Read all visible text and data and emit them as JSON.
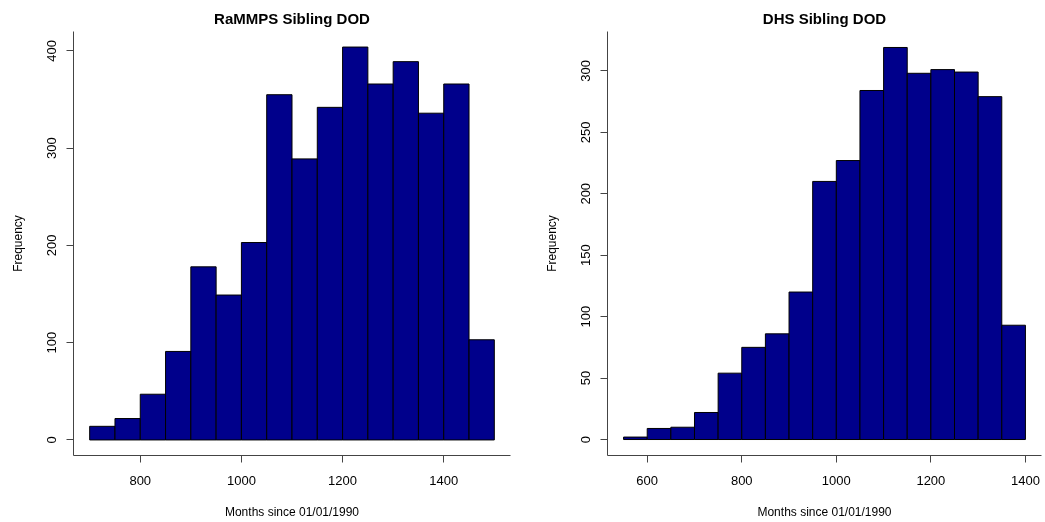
{
  "chart_data": [
    {
      "type": "histogram",
      "title": "RaMMPS Sibling DOD",
      "xlabel": "Months since 01/01/1990",
      "ylabel": "Frequency",
      "bins": [
        700,
        750,
        800,
        850,
        900,
        950,
        1000,
        1050,
        1100,
        1150,
        1200,
        1250,
        1300,
        1350,
        1400,
        1450,
        1500
      ],
      "values": [
        14,
        22,
        47,
        91,
        178,
        149,
        203,
        355,
        289,
        342,
        404,
        366,
        389,
        336,
        366,
        103
      ],
      "color": "#00008b",
      "xlim": [
        668,
        1532
      ],
      "ylim": [
        -16,
        420
      ],
      "xticks": [
        800,
        1000,
        1200,
        1400
      ],
      "yticks": [
        0,
        100,
        200,
        300,
        400
      ]
    },
    {
      "type": "histogram",
      "title": "DHS Sibling DOD",
      "xlabel": "Months since 01/01/1990",
      "ylabel": "Frequency",
      "bins": [
        550,
        600,
        650,
        700,
        750,
        800,
        850,
        900,
        950,
        1000,
        1050,
        1100,
        1150,
        1200,
        1250,
        1300,
        1350,
        1400
      ],
      "values": [
        2,
        9,
        10,
        22,
        54,
        75,
        86,
        120,
        210,
        227,
        284,
        319,
        298,
        301,
        299,
        279,
        93
      ],
      "color": "#00008b",
      "xlim": [
        516,
        1434
      ],
      "ylim": [
        -13,
        332
      ],
      "xticks": [
        600,
        800,
        1000,
        1200,
        1400
      ],
      "yticks": [
        0,
        50,
        100,
        150,
        200,
        250,
        300
      ]
    }
  ]
}
